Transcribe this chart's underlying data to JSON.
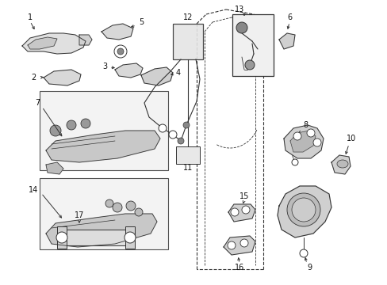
{
  "bg_color": "#ffffff",
  "fig_width": 4.89,
  "fig_height": 3.6,
  "dpi": 100,
  "line_color": "#333333",
  "fill_light": "#e8e8e8",
  "fill_mid": "#cccccc",
  "fill_dark": "#aaaaaa"
}
